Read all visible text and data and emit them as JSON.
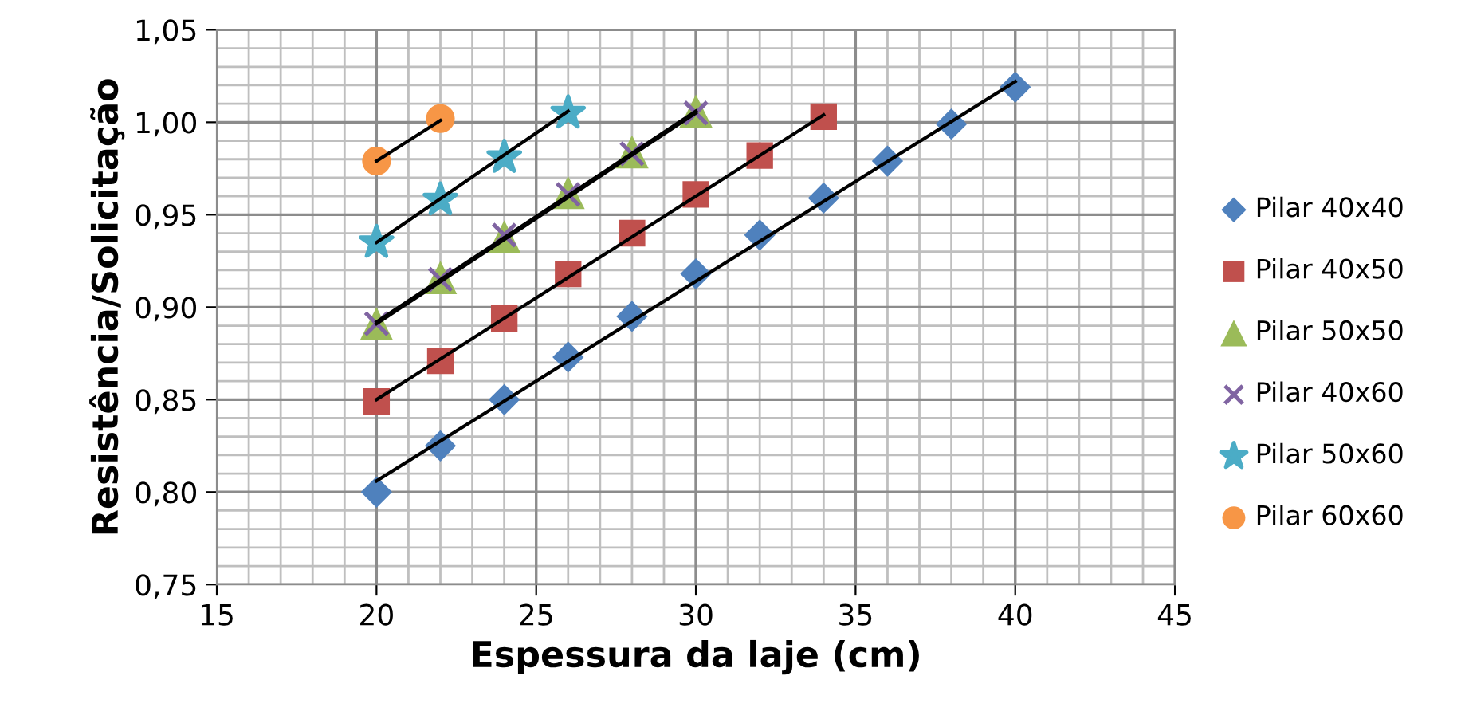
{
  "chart_data": {
    "type": "scatter",
    "xlabel": "Espessura da laje (cm)",
    "ylabel": "Resistência/Solicitação",
    "xlim": [
      15,
      45
    ],
    "xticks": [
      15,
      20,
      25,
      30,
      35,
      40,
      45
    ],
    "ylim": [
      0.75,
      1.05
    ],
    "yticks": [
      {
        "value": 0.75,
        "label": "0,75"
      },
      {
        "value": 0.8,
        "label": "0,80"
      },
      {
        "value": 0.85,
        "label": "0,85"
      },
      {
        "value": 0.9,
        "label": "0,90"
      },
      {
        "value": 0.95,
        "label": "0,95"
      },
      {
        "value": 1.0,
        "label": "1,00"
      },
      {
        "value": 1.05,
        "label": "1,05"
      }
    ],
    "grid": true,
    "legend": "right",
    "series": [
      {
        "name": "Pilar 40x40",
        "color": "#4f81bd",
        "marker": "diamond",
        "x": [
          20,
          22,
          24,
          26,
          28,
          30,
          32,
          34,
          36,
          38,
          40
        ],
        "values": [
          0.8,
          0.825,
          0.85,
          0.873,
          0.895,
          0.918,
          0.939,
          0.959,
          0.979,
          0.999,
          1.019
        ]
      },
      {
        "name": "Pilar 40x50",
        "color": "#c0504d",
        "marker": "square",
        "x": [
          20,
          22,
          24,
          26,
          28,
          30,
          32,
          34
        ],
        "values": [
          0.849,
          0.871,
          0.894,
          0.918,
          0.94,
          0.961,
          0.982,
          1.003
        ]
      },
      {
        "name": "Pilar 50x50",
        "color": "#9bbb59",
        "marker": "triangle",
        "x": [
          20,
          22,
          24,
          26,
          28,
          30
        ],
        "values": [
          0.891,
          0.916,
          0.938,
          0.962,
          0.984,
          1.006
        ]
      },
      {
        "name": "Pilar 40x60",
        "color": "#8064a2",
        "marker": "cross",
        "x": [
          20,
          22,
          24,
          26,
          28,
          30
        ],
        "values": [
          0.891,
          0.915,
          0.939,
          0.961,
          0.983,
          1.005
        ]
      },
      {
        "name": "Pilar 50x60",
        "color": "#4bacc6",
        "marker": "star",
        "x": [
          20,
          22,
          24,
          26
        ],
        "values": [
          0.935,
          0.958,
          0.981,
          1.005
        ]
      },
      {
        "name": "Pilar 60x60",
        "color": "#f79646",
        "marker": "circle",
        "x": [
          20,
          22
        ],
        "values": [
          0.979,
          1.002
        ]
      },
      {
        "type": "line",
        "color": "#000000",
        "x": [
          20,
          40
        ],
        "values": [
          0.806,
          1.022
        ]
      },
      {
        "type": "line",
        "color": "#000000",
        "x": [
          20,
          34
        ],
        "values": [
          0.85,
          1.004
        ]
      },
      {
        "type": "line",
        "color": "#000000",
        "x": [
          20,
          30
        ],
        "values": [
          0.892,
          1.006
        ]
      },
      {
        "type": "line",
        "color": "#000000",
        "x": [
          20,
          30
        ],
        "values": [
          0.891,
          1.005
        ]
      },
      {
        "type": "line",
        "color": "#000000",
        "x": [
          20,
          26
        ],
        "values": [
          0.935,
          1.006
        ]
      },
      {
        "type": "line",
        "color": "#000000",
        "x": [
          20,
          22
        ],
        "values": [
          0.979,
          1.001
        ]
      }
    ]
  }
}
